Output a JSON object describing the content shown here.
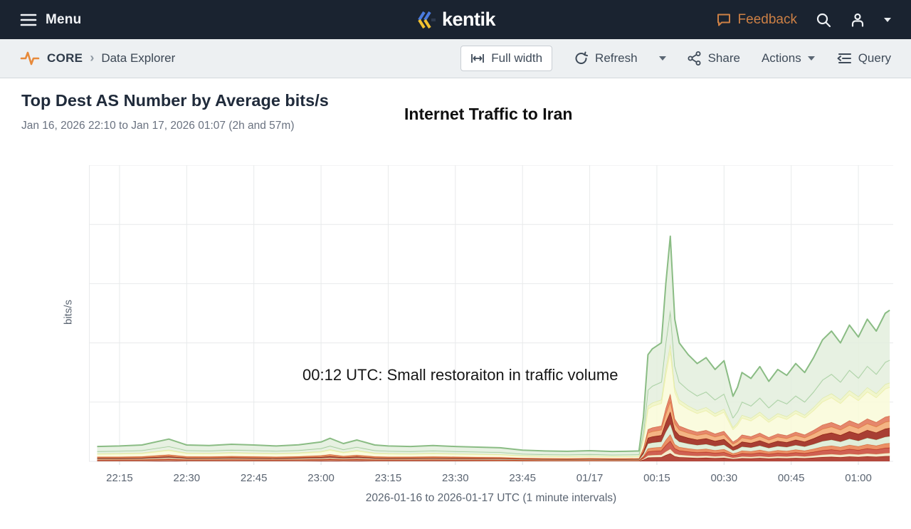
{
  "header": {
    "menu_label": "Menu",
    "brand": "kentik",
    "feedback_label": "Feedback"
  },
  "toolbar": {
    "breadcrumb": {
      "section": "CORE",
      "page": "Data Explorer"
    },
    "buttons": {
      "full_width": "Full width",
      "refresh": "Refresh",
      "share": "Share",
      "actions": "Actions",
      "query": "Query"
    }
  },
  "panel": {
    "title": "Top Dest AS Number by Average bits/s",
    "subtitle": "Jan 16, 2026 22:10 to Jan 17, 2026 01:07 (2h and 57m)"
  },
  "icons": {
    "menu": "hamburger",
    "brand_mark": "triple-chevron blue/yellow",
    "feedback": "speech-bubble",
    "search": "magnifier",
    "account": "person",
    "account_caret": "caret-down",
    "core": "orange-pulse",
    "breadcrumb_chevron": "›",
    "full_width": "width-arrows",
    "refresh": "circular-arrows",
    "refresh_caret": "caret-down",
    "share": "share-nodes",
    "actions_caret": "caret-down",
    "query": "indent-list"
  },
  "colors": {
    "header_bg": "#1a2330",
    "toolbar_bg": "#edf0f2",
    "accent_orange": "#e78a3b",
    "feedback_orange": "#cd8045",
    "brand_blue": "#4a7be0",
    "brand_yellow": "#f2c230",
    "text_dark": "#27303f",
    "text_gray": "#6a7280",
    "grid": "#e8eaeb",
    "tick_text": "#5b6572"
  },
  "chart_data": {
    "type": "area",
    "stacked": true,
    "title": "Top Dest AS Number by Average bits/s",
    "ylabel": "bits/s",
    "xlabel": "2026-01-16 to 2026-01-17 UTC (1 minute intervals)",
    "y_units": "relative (y axis unlabeled, bits/s)",
    "ylim": [
      0,
      100
    ],
    "x_domain_minutes": [
      0,
      177
    ],
    "x_start": "2026-01-16 22:10 UTC",
    "grid": true,
    "legend": "none",
    "annotations": [
      {
        "text": "Internet Traffic to Iran",
        "role": "title-overlay"
      },
      {
        "text": "00:12 UTC: Small restoraiton in traffic volume",
        "role": "event-note"
      }
    ],
    "x_ticks": [
      {
        "label": "22:15",
        "minute": 5
      },
      {
        "label": "22:30",
        "minute": 20
      },
      {
        "label": "22:45",
        "minute": 35
      },
      {
        "label": "23:00",
        "minute": 50
      },
      {
        "label": "23:15",
        "minute": 65
      },
      {
        "label": "23:30",
        "minute": 80
      },
      {
        "label": "23:45",
        "minute": 95
      },
      {
        "label": "01/17",
        "minute": 110
      },
      {
        "label": "00:15",
        "minute": 125
      },
      {
        "label": "00:30",
        "minute": 140
      },
      {
        "label": "00:45",
        "minute": 155
      },
      {
        "label": "01:00",
        "minute": 170
      }
    ],
    "x_minutes": [
      0,
      5,
      10,
      16,
      20,
      25,
      30,
      35,
      40,
      45,
      50,
      52,
      55,
      58,
      62,
      65,
      70,
      75,
      80,
      85,
      90,
      95,
      100,
      105,
      110,
      115,
      118,
      121,
      122,
      123,
      124,
      126,
      127,
      128,
      129,
      130,
      132,
      134,
      136,
      138,
      140,
      141,
      142,
      143,
      144,
      146,
      148,
      150,
      152,
      154,
      156,
      158,
      160,
      162,
      164,
      166,
      168,
      170,
      172,
      174,
      176,
      177
    ],
    "series": [
      {
        "name": "band-01",
        "fill": "#a8291b",
        "stroke": "#8a1708",
        "width": 1,
        "values": [
          0.18,
          0.18,
          0.19,
          0.26,
          0.19,
          0.19,
          0.2,
          0.19,
          0.18,
          0.2,
          0.23,
          0.27,
          0.21,
          0.25,
          0.19,
          0.18,
          0.18,
          0.19,
          0.18,
          0.17,
          0.16,
          0.13,
          0.12,
          0.12,
          0.13,
          0.12,
          0.12,
          0.12,
          0.53,
          1.26,
          1.33,
          1.4,
          2.1,
          2.66,
          1.68,
          1.4,
          1.26,
          1.16,
          1.23,
          1.09,
          1.19,
          0.98,
          0.77,
          0.88,
          1.05,
          0.98,
          1.12,
          0.95,
          1.09,
          1.02,
          1.16,
          1.05,
          1.23,
          1.44,
          1.54,
          1.4,
          1.61,
          1.47,
          1.68,
          1.54,
          1.75,
          1.79
        ]
      },
      {
        "name": "band-02",
        "fill": "#f3e6c4",
        "stroke": "#e2c893",
        "width": 1,
        "values": [
          0.1,
          0.1,
          0.11,
          0.15,
          0.11,
          0.11,
          0.12,
          0.11,
          0.1,
          0.11,
          0.13,
          0.16,
          0.12,
          0.14,
          0.11,
          0.1,
          0.1,
          0.11,
          0.1,
          0.1,
          0.09,
          0.08,
          0.07,
          0.07,
          0.07,
          0.07,
          0.07,
          0.07,
          0.3,
          0.72,
          0.76,
          0.8,
          1.2,
          1.52,
          0.96,
          0.8,
          0.72,
          0.66,
          0.7,
          0.62,
          0.68,
          0.56,
          0.44,
          0.5,
          0.6,
          0.56,
          0.64,
          0.54,
          0.62,
          0.58,
          0.66,
          0.6,
          0.7,
          0.82,
          0.88,
          0.8,
          0.92,
          0.84,
          0.96,
          0.88,
          1.0,
          1.02
        ]
      },
      {
        "name": "band-03",
        "fill": "#c84434",
        "stroke": "#ab2d1f",
        "width": 1,
        "values": [
          0.18,
          0.18,
          0.19,
          0.26,
          0.19,
          0.19,
          0.2,
          0.19,
          0.18,
          0.2,
          0.23,
          0.27,
          0.21,
          0.25,
          0.19,
          0.18,
          0.18,
          0.19,
          0.18,
          0.17,
          0.16,
          0.13,
          0.12,
          0.12,
          0.13,
          0.12,
          0.12,
          0.12,
          0.53,
          1.26,
          1.33,
          1.4,
          2.1,
          2.66,
          1.68,
          1.4,
          1.26,
          1.16,
          1.23,
          1.09,
          1.19,
          0.98,
          0.77,
          0.88,
          1.05,
          0.98,
          1.12,
          0.95,
          1.09,
          1.02,
          1.16,
          1.05,
          1.23,
          1.44,
          1.54,
          1.4,
          1.61,
          1.47,
          1.68,
          1.54,
          1.75,
          1.79
        ]
      },
      {
        "name": "band-04",
        "fill": "#e87c4b",
        "stroke": "#d4602f",
        "width": 1,
        "values": [
          0.15,
          0.16,
          0.17,
          0.23,
          0.17,
          0.16,
          0.17,
          0.17,
          0.16,
          0.17,
          0.2,
          0.23,
          0.18,
          0.22,
          0.17,
          0.16,
          0.15,
          0.16,
          0.15,
          0.14,
          0.14,
          0.11,
          0.11,
          0.1,
          0.11,
          0.1,
          0.1,
          0.11,
          0.45,
          1.08,
          1.14,
          1.2,
          1.8,
          2.28,
          1.44,
          1.2,
          1.08,
          0.99,
          1.05,
          0.93,
          1.02,
          0.84,
          0.66,
          0.75,
          0.9,
          0.84,
          0.96,
          0.81,
          0.93,
          0.87,
          0.99,
          0.9,
          1.05,
          1.23,
          1.32,
          1.2,
          1.38,
          1.26,
          1.44,
          1.32,
          1.5,
          1.53
        ]
      },
      {
        "name": "band-05",
        "fill": "#dcebd3",
        "stroke": "#bcd9b1",
        "width": 1,
        "values": [
          0.23,
          0.23,
          0.25,
          0.34,
          0.25,
          0.24,
          0.26,
          0.25,
          0.23,
          0.25,
          0.29,
          0.35,
          0.27,
          0.32,
          0.25,
          0.23,
          0.23,
          0.24,
          0.23,
          0.22,
          0.21,
          0.17,
          0.16,
          0.15,
          0.16,
          0.15,
          0.15,
          0.16,
          0.68,
          1.62,
          1.71,
          1.8,
          2.7,
          3.42,
          2.16,
          1.8,
          1.62,
          1.49,
          1.58,
          1.4,
          1.53,
          1.26,
          0.99,
          1.13,
          1.35,
          1.26,
          1.44,
          1.22,
          1.4,
          1.31,
          1.49,
          1.35,
          1.58,
          1.85,
          1.98,
          1.8,
          2.07,
          1.89,
          2.16,
          1.98,
          2.25,
          2.3
        ]
      },
      {
        "name": "band-06",
        "fill": "#991c0f",
        "stroke": "#7c0f05",
        "width": 1,
        "values": [
          0.28,
          0.29,
          0.3,
          0.41,
          0.3,
          0.29,
          0.32,
          0.3,
          0.29,
          0.31,
          0.36,
          0.43,
          0.33,
          0.4,
          0.3,
          0.29,
          0.28,
          0.29,
          0.28,
          0.26,
          0.25,
          0.21,
          0.19,
          0.19,
          0.2,
          0.18,
          0.19,
          0.19,
          0.83,
          1.98,
          2.09,
          2.2,
          3.3,
          4.18,
          2.64,
          2.2,
          1.98,
          1.82,
          1.93,
          1.71,
          1.87,
          1.54,
          1.21,
          1.38,
          1.65,
          1.54,
          1.76,
          1.49,
          1.71,
          1.6,
          1.82,
          1.65,
          1.93,
          2.26,
          2.42,
          2.2,
          2.53,
          2.31,
          2.64,
          2.42,
          2.75,
          2.81
        ]
      },
      {
        "name": "band-07",
        "fill": "#f2a76f",
        "stroke": "#e18a48",
        "width": 1,
        "values": [
          0.23,
          0.23,
          0.25,
          0.34,
          0.25,
          0.24,
          0.26,
          0.25,
          0.23,
          0.25,
          0.29,
          0.35,
          0.27,
          0.32,
          0.25,
          0.23,
          0.23,
          0.24,
          0.23,
          0.22,
          0.21,
          0.17,
          0.16,
          0.15,
          0.16,
          0.15,
          0.15,
          0.16,
          0.68,
          1.62,
          1.71,
          1.8,
          2.7,
          3.42,
          2.16,
          1.8,
          1.62,
          1.49,
          1.58,
          1.4,
          1.53,
          1.26,
          0.99,
          1.13,
          1.35,
          1.26,
          1.44,
          1.22,
          1.4,
          1.31,
          1.49,
          1.35,
          1.58,
          1.85,
          1.98,
          1.8,
          2.07,
          1.89,
          2.16,
          1.98,
          2.25,
          2.3
        ]
      },
      {
        "name": "band-08",
        "fill": "#e17252",
        "stroke": "#cb5334",
        "width": 1,
        "values": [
          0.18,
          0.18,
          0.19,
          0.26,
          0.19,
          0.19,
          0.2,
          0.19,
          0.18,
          0.2,
          0.23,
          0.27,
          0.21,
          0.25,
          0.19,
          0.18,
          0.18,
          0.19,
          0.18,
          0.17,
          0.16,
          0.13,
          0.12,
          0.12,
          0.13,
          0.12,
          0.12,
          0.12,
          0.53,
          1.26,
          1.33,
          1.4,
          2.1,
          2.66,
          1.68,
          1.4,
          1.26,
          1.16,
          1.23,
          1.09,
          1.19,
          0.98,
          0.77,
          0.88,
          1.05,
          0.98,
          1.12,
          0.95,
          1.09,
          1.02,
          1.16,
          1.05,
          1.23,
          1.44,
          1.54,
          1.4,
          1.61,
          1.47,
          1.68,
          1.54,
          1.75,
          1.79
        ]
      },
      {
        "name": "band-09",
        "fill": "#f9fad8",
        "stroke": "#edefab",
        "width": 1.4,
        "values": [
          0.95,
          0.99,
          1.05,
          1.43,
          1.05,
          1.01,
          1.1,
          1.05,
          0.99,
          1.06,
          1.24,
          1.48,
          1.14,
          1.37,
          1.05,
          0.99,
          0.95,
          1.01,
          0.95,
          0.91,
          0.87,
          0.72,
          0.67,
          0.65,
          0.68,
          0.63,
          0.65,
          0.67,
          2.85,
          6.84,
          7.22,
          7.6,
          11.4,
          14.44,
          9.12,
          7.6,
          6.84,
          6.27,
          6.65,
          5.89,
          6.46,
          5.32,
          4.18,
          4.75,
          5.7,
          5.32,
          6.08,
          5.13,
          5.89,
          5.51,
          6.27,
          5.7,
          6.65,
          7.79,
          8.36,
          7.6,
          8.74,
          7.98,
          9.12,
          8.36,
          9.5,
          9.69
        ]
      },
      {
        "name": "band-10",
        "fill": "#eff4c4",
        "stroke": "#dde89c",
        "width": 1,
        "values": [
          0.15,
          0.16,
          0.17,
          0.23,
          0.17,
          0.16,
          0.17,
          0.17,
          0.16,
          0.17,
          0.2,
          0.23,
          0.18,
          0.22,
          0.17,
          0.16,
          0.15,
          0.16,
          0.15,
          0.14,
          0.14,
          0.11,
          0.11,
          0.1,
          0.11,
          0.1,
          0.1,
          0.11,
          0.45,
          1.08,
          1.14,
          1.2,
          1.8,
          2.28,
          1.44,
          1.2,
          1.08,
          0.99,
          1.05,
          0.93,
          1.02,
          0.84,
          0.66,
          0.75,
          0.9,
          0.84,
          0.96,
          0.81,
          0.93,
          0.87,
          0.99,
          0.9,
          1.05,
          1.23,
          1.32,
          1.2,
          1.38,
          1.26,
          1.44,
          1.32,
          1.5,
          1.53
        ]
      },
      {
        "name": "band-11",
        "fill": "#e4efdd",
        "stroke": "#a3cd9d",
        "width": 1.6,
        "values": [
          0.75,
          0.78,
          0.83,
          1.13,
          0.83,
          0.8,
          0.87,
          0.83,
          0.78,
          0.84,
          0.98,
          1.17,
          0.9,
          1.08,
          0.83,
          0.78,
          0.75,
          0.8,
          0.75,
          0.72,
          0.69,
          0.57,
          0.53,
          0.51,
          0.54,
          0.5,
          0.51,
          0.53,
          2.25,
          5.4,
          5.7,
          6.0,
          9.0,
          11.4,
          7.2,
          6.0,
          5.4,
          4.95,
          5.25,
          4.65,
          5.1,
          4.2,
          3.3,
          3.75,
          4.5,
          4.2,
          4.8,
          4.05,
          4.65,
          4.35,
          4.95,
          4.5,
          5.25,
          6.15,
          6.6,
          6.0,
          6.9,
          6.3,
          7.2,
          6.6,
          7.5,
          7.65
        ]
      },
      {
        "name": "band-12",
        "fill": "#e3eedd",
        "stroke": "#8abc84",
        "width": 2,
        "values": [
          1.65,
          1.72,
          1.82,
          2.48,
          1.82,
          1.75,
          1.91,
          1.82,
          1.72,
          1.85,
          2.15,
          2.57,
          1.98,
          2.38,
          1.82,
          1.72,
          1.65,
          1.75,
          1.65,
          1.58,
          1.52,
          1.25,
          1.16,
          1.12,
          1.19,
          1.09,
          1.12,
          1.16,
          4.95,
          11.88,
          12.54,
          13.2,
          19.8,
          25.08,
          15.84,
          13.2,
          11.88,
          10.89,
          11.55,
          10.23,
          11.22,
          9.24,
          7.26,
          8.25,
          9.9,
          9.24,
          10.56,
          8.91,
          10.23,
          9.57,
          10.89,
          9.9,
          11.55,
          13.53,
          14.52,
          13.2,
          15.18,
          13.86,
          15.84,
          14.52,
          16.5,
          16.83
        ]
      }
    ]
  }
}
